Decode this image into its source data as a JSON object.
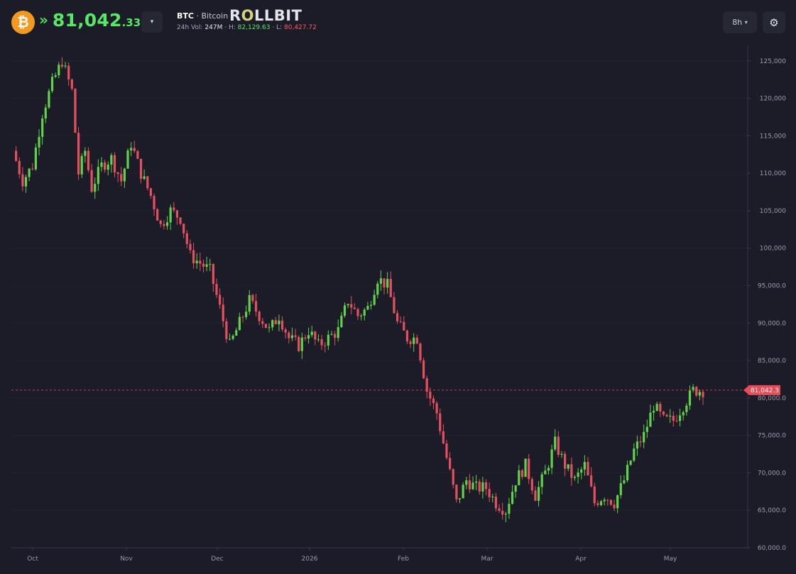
{
  "header": {
    "coin_icon": "bitcoin-icon",
    "coin_glyph": "₿",
    "trend_arrow": "»",
    "price_main": "81,042",
    "price_decimal": ".33",
    "dropdown_glyph": "▾",
    "symbol": "BTC",
    "separator": "·",
    "name": "Bitcoin",
    "logo": "ROLLBIT",
    "stats": {
      "vol_label": "24h Vol:",
      "vol_value": "247M",
      "high_label": "H:",
      "high_value": "82,129.63",
      "low_label": "L:",
      "low_value": "80,427.72"
    },
    "timeframe": "8h",
    "timeframe_caret": "▾",
    "settings_glyph": "⚙"
  },
  "colors": {
    "background": "#1b1c27",
    "up": "#57e865",
    "down": "#ff5b5b",
    "candle_up": "#5fd34a",
    "candle_down": "#e6505e",
    "accent_orange": "#f29a1f"
  },
  "chart_data": {
    "type": "candlestick",
    "y_ticks": [
      "125,000",
      "120,000",
      "115,000",
      "110,000",
      "105,000",
      "100,000",
      "95,000.0",
      "90,000.0",
      "85,000.0",
      "80,000.0",
      "75,000.0",
      "70,000.0",
      "65,000.0",
      "60,000.0"
    ],
    "y_tick_values": [
      125000,
      120000,
      115000,
      110000,
      105000,
      100000,
      95000,
      90000,
      85000,
      80000,
      75000,
      70000,
      65000,
      60000
    ],
    "x_ticks": [
      "Oct",
      "Nov",
      "Dec",
      "2026",
      "Feb",
      "Mar",
      "Apr",
      "May"
    ],
    "ylim": [
      60000,
      126500
    ],
    "current_price": 81042.3,
    "current_price_label": "81,042.3",
    "close_path": [
      [
        0,
        113000
      ],
      [
        3,
        109000
      ],
      [
        6,
        111000
      ],
      [
        9,
        118000
      ],
      [
        12,
        122000
      ],
      [
        15,
        125000
      ],
      [
        18,
        121000
      ],
      [
        20,
        110000
      ],
      [
        22,
        113000
      ],
      [
        24,
        108000
      ],
      [
        27,
        111000
      ],
      [
        30,
        112000
      ],
      [
        33,
        109000
      ],
      [
        36,
        114000
      ],
      [
        39,
        110000
      ],
      [
        42,
        107000
      ],
      [
        45,
        103000
      ],
      [
        48,
        105000
      ],
      [
        51,
        104000
      ],
      [
        54,
        99000
      ],
      [
        57,
        98000
      ],
      [
        60,
        97000
      ],
      [
        63,
        92000
      ],
      [
        66,
        87000
      ],
      [
        69,
        90000
      ],
      [
        72,
        93000
      ],
      [
        75,
        91000
      ],
      [
        78,
        89000
      ],
      [
        81,
        91000
      ],
      [
        84,
        88000
      ],
      [
        87,
        87000
      ],
      [
        90,
        89000
      ],
      [
        93,
        87000
      ],
      [
        96,
        88000
      ],
      [
        99,
        89000
      ],
      [
        102,
        93000
      ],
      [
        105,
        91000
      ],
      [
        108,
        92000
      ],
      [
        111,
        96000
      ],
      [
        114,
        95000
      ],
      [
        117,
        90000
      ],
      [
        120,
        88000
      ],
      [
        123,
        88000
      ],
      [
        126,
        81000
      ],
      [
        129,
        78000
      ],
      [
        132,
        72000
      ],
      [
        135,
        66000
      ],
      [
        138,
        69000
      ],
      [
        141,
        68000
      ],
      [
        144,
        68000
      ],
      [
        147,
        66000
      ],
      [
        150,
        65000
      ],
      [
        153,
        69000
      ],
      [
        156,
        71000
      ],
      [
        159,
        67000
      ],
      [
        162,
        70000
      ],
      [
        165,
        74000
      ],
      [
        168,
        71000
      ],
      [
        171,
        69000
      ],
      [
        174,
        71000
      ],
      [
        177,
        66000
      ],
      [
        180,
        67000
      ],
      [
        183,
        66000
      ],
      [
        186,
        69000
      ],
      [
        189,
        73000
      ],
      [
        192,
        75000
      ],
      [
        195,
        79000
      ],
      [
        198,
        77000
      ],
      [
        201,
        77000
      ],
      [
        204,
        79000
      ],
      [
        207,
        81000
      ],
      [
        210,
        81000
      ]
    ]
  }
}
